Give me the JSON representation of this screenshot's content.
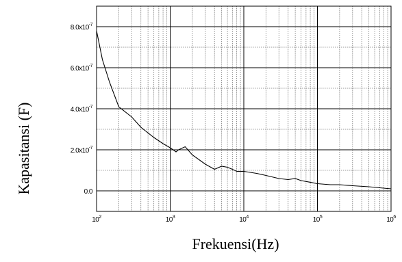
{
  "chart_data": {
    "type": "line",
    "title": "",
    "xlabel": "Frekuensi(Hz)",
    "ylabel": "Kapasitansi (F)",
    "x_scale": "log",
    "xlim": [
      100,
      1000000
    ],
    "ylim": [
      -1e-07,
      9e-07
    ],
    "grid": true,
    "legend": "none",
    "x_ticks": [
      {
        "value": 100,
        "base": "10",
        "exp": "2"
      },
      {
        "value": 1000,
        "base": "10",
        "exp": "3"
      },
      {
        "value": 10000,
        "base": "10",
        "exp": "4"
      },
      {
        "value": 100000,
        "base": "10",
        "exp": "5"
      },
      {
        "value": 1000000,
        "base": "10",
        "exp": "6"
      }
    ],
    "y_ticks": [
      {
        "value": 0,
        "label": "0.0"
      },
      {
        "value": 2e-07,
        "label": "2.0x10",
        "exp": "-7"
      },
      {
        "value": 4e-07,
        "label": "4.0x10",
        "exp": "-7"
      },
      {
        "value": 6e-07,
        "label": "6.0x10",
        "exp": "-7"
      },
      {
        "value": 8e-07,
        "label": "8.0x10",
        "exp": "-7"
      }
    ],
    "series": [
      {
        "color": "#000000",
        "x": [
          100,
          120,
          150,
          200,
          300,
          400,
          600,
          800,
          1000,
          1200,
          1300,
          1600,
          2000,
          3000,
          4000,
          5000,
          6000,
          7000,
          8000,
          10000,
          15000,
          20000,
          30000,
          40000,
          50000,
          60000,
          80000,
          100000,
          150000,
          200000,
          300000,
          500000,
          700000,
          1000000
        ],
        "y": [
          7.8e-07,
          6.4e-07,
          5.3e-07,
          4.1e-07,
          3.6e-07,
          3.1e-07,
          2.6e-07,
          2.3e-07,
          2.1e-07,
          1.9e-07,
          2e-07,
          2.15e-07,
          1.75e-07,
          1.3e-07,
          1.05e-07,
          1.2e-07,
          1.15e-07,
          1.05e-07,
          9.5e-08,
          9.5e-08,
          8.5e-08,
          7.5e-08,
          6e-08,
          5.5e-08,
          6e-08,
          5e-08,
          4.2e-08,
          3.5e-08,
          3e-08,
          3e-08,
          2.5e-08,
          2e-08,
          1.5e-08,
          1e-08
        ]
      }
    ]
  }
}
